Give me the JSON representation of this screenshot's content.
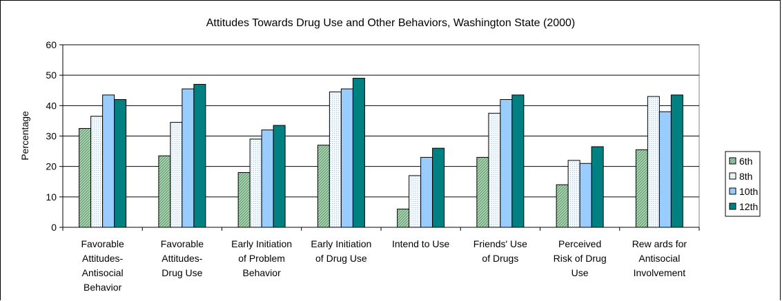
{
  "chart_data": {
    "type": "bar",
    "title": "Attitudes Towards Drug Use and Other Behaviors, Washington State (2000)",
    "ylabel": "Percentage",
    "xlabel": "",
    "ylim": [
      0,
      60
    ],
    "yticks": [
      0,
      10,
      20,
      30,
      40,
      50,
      60
    ],
    "grid": true,
    "legend_position": "right",
    "categories": [
      [
        "Favorable",
        "Attitudes-",
        "Antisocial",
        "Behavior"
      ],
      [
        "Favorable",
        "Attitudes-",
        "Drug Use"
      ],
      [
        "Early Initiation",
        "of Problem",
        "Behavior"
      ],
      [
        "Early Initiation",
        "of Drug Use"
      ],
      [
        "Intend to Use"
      ],
      [
        "Friends' Use",
        "of Drugs"
      ],
      [
        "Perceived",
        "Risk of Drug",
        "Use"
      ],
      [
        "Rew ards for",
        "Antisocial",
        "Involvement"
      ]
    ],
    "series": [
      {
        "name": "6th",
        "color": "#a9d3b0",
        "pattern": "hatch",
        "values": [
          32.5,
          23.5,
          18,
          27,
          6,
          23,
          14,
          25.5
        ]
      },
      {
        "name": "8th",
        "color": "#eef6fb",
        "pattern": "dots",
        "values": [
          36.5,
          34.5,
          29,
          44.5,
          17,
          37.5,
          22,
          43
        ]
      },
      {
        "name": "10th",
        "color": "#99ccff",
        "pattern": "solid",
        "values": [
          43.5,
          45.5,
          32,
          45.5,
          23,
          42,
          21,
          38
        ]
      },
      {
        "name": "12th",
        "color": "#008080",
        "pattern": "solid",
        "values": [
          42,
          47,
          33.5,
          49,
          26,
          43.5,
          26.5,
          43.5
        ]
      }
    ]
  }
}
